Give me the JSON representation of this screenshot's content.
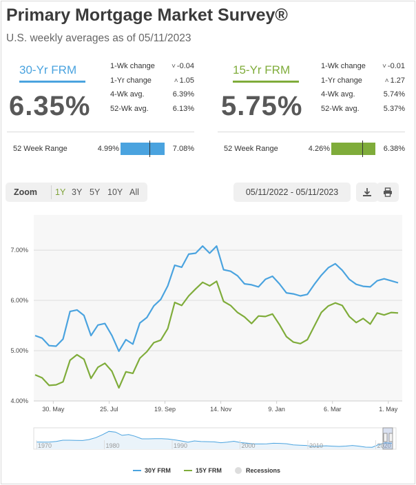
{
  "header": {
    "title": "Primary Mortgage Market Survey®",
    "subtitle": "U.S. weekly averages as of 05/11/2023"
  },
  "cards": [
    {
      "name": "30-Yr FRM",
      "color": "#4aa3df",
      "rate": "6.35%",
      "stats": [
        {
          "label": "1-Wk change",
          "arrow": "˅",
          "value": "-0.04"
        },
        {
          "label": "1-Yr change",
          "arrow": "˄",
          "value": "1.05"
        },
        {
          "label": "4-Wk avg.",
          "arrow": "",
          "value": "6.39%"
        },
        {
          "label": "52-Wk avg.",
          "arrow": "",
          "value": "6.13%"
        }
      ],
      "range_label": "52 Week Range",
      "range_low": "4.99%",
      "range_high": "7.08%",
      "range_marker_fraction": 0.65
    },
    {
      "name": "15-Yr FRM",
      "color": "#7fac3a",
      "rate": "5.75%",
      "stats": [
        {
          "label": "1-Wk change",
          "arrow": "˅",
          "value": "-0.01"
        },
        {
          "label": "1-Yr change",
          "arrow": "˄",
          "value": "1.27"
        },
        {
          "label": "4-Wk avg.",
          "arrow": "",
          "value": "5.74%"
        },
        {
          "label": "52-Wk avg.",
          "arrow": "",
          "value": "5.37%"
        }
      ],
      "range_label": "52 Week Range",
      "range_low": "4.26%",
      "range_high": "6.38%",
      "range_marker_fraction": 0.7
    }
  ],
  "controls": {
    "zoom_label": "Zoom",
    "zoom_options": [
      "1Y",
      "3Y",
      "5Y",
      "10Y",
      "All"
    ],
    "zoom_selected": "1Y",
    "date_range": "05/11/2022 - 05/11/2023",
    "download_icon": "download-icon",
    "print_icon": "print-icon"
  },
  "chart_data": {
    "type": "line",
    "title": "",
    "xlabel": "",
    "ylabel": "",
    "ylim": [
      4.0,
      7.7
    ],
    "y_ticks": [
      "4.00%",
      "5.00%",
      "6.00%",
      "7.00%"
    ],
    "y_tick_values": [
      4.0,
      5.0,
      6.0,
      7.0
    ],
    "x_ticks": [
      "30. May",
      "25. Jul",
      "19. Sep",
      "14. Nov",
      "9. Jan",
      "6. Mar",
      "1. May"
    ],
    "x_tick_week_index": [
      2.6,
      10.6,
      18.6,
      26.6,
      34.6,
      42.6,
      50.6
    ],
    "series": [
      {
        "name": "30Y FRM",
        "color": "#4aa3df",
        "values": [
          5.3,
          5.25,
          5.1,
          5.09,
          5.23,
          5.78,
          5.81,
          5.7,
          5.3,
          5.51,
          5.54,
          5.3,
          4.99,
          5.22,
          5.13,
          5.55,
          5.66,
          5.89,
          6.02,
          6.29,
          6.7,
          6.66,
          6.92,
          6.94,
          7.08,
          6.94,
          7.08,
          6.61,
          6.58,
          6.49,
          6.33,
          6.31,
          6.27,
          6.42,
          6.48,
          6.33,
          6.15,
          6.13,
          6.09,
          6.12,
          6.32,
          6.5,
          6.65,
          6.73,
          6.6,
          6.42,
          6.32,
          6.28,
          6.27,
          6.39,
          6.43,
          6.39,
          6.35
        ]
      },
      {
        "name": "15Y FRM",
        "color": "#7fac3a",
        "values": [
          4.52,
          4.46,
          4.31,
          4.32,
          4.38,
          4.81,
          4.92,
          4.83,
          4.45,
          4.67,
          4.75,
          4.59,
          4.26,
          4.58,
          4.55,
          4.85,
          4.98,
          5.16,
          5.21,
          5.44,
          5.96,
          5.9,
          6.09,
          6.23,
          6.36,
          6.29,
          6.38,
          5.98,
          5.9,
          5.76,
          5.67,
          5.54,
          5.69,
          5.68,
          5.73,
          5.52,
          5.28,
          5.17,
          5.14,
          5.22,
          5.49,
          5.76,
          5.89,
          5.95,
          5.9,
          5.68,
          5.56,
          5.64,
          5.53,
          5.75,
          5.71,
          5.76,
          5.75
        ]
      }
    ],
    "navigator_ticks": [
      "1970",
      "1980",
      "1990",
      "2000",
      "2010",
      "2020"
    ],
    "legend": [
      "30Y FRM",
      "15Y FRM",
      "Recessions"
    ],
    "legend_position": "bottom-center"
  }
}
